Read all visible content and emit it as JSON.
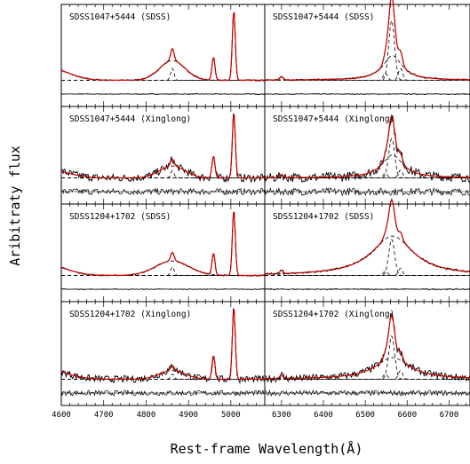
{
  "colors": {
    "data_line": "#000000",
    "model_line": "#cc0000",
    "component_line": "#000000"
  },
  "chart_data": {
    "type": "line",
    "xlabel": "Rest-frame Wavelength(Å)",
    "ylabel": "Aribitraty flux",
    "left_x_ticks": [
      "4600",
      "4700",
      "4800",
      "4900",
      "5000"
    ],
    "right_x_ticks": [
      "6300",
      "6400",
      "6500",
      "6600",
      "6700"
    ],
    "left_xlim": [
      4600,
      5080
    ],
    "right_xlim": [
      6260,
      6750
    ],
    "panels": [
      {
        "label": "SDSS1047+5444 (SDSS)",
        "row": 0,
        "col": 0,
        "region": "hbeta_oiii",
        "fe_strength": 0.35,
        "hb_strength": 0.28,
        "o3_strength": 1.0,
        "noise": 0.01,
        "broad_width": 30
      },
      {
        "label": "SDSS1047+5444 (SDSS)",
        "row": 0,
        "col": 1,
        "region": "halpha",
        "narrow_strength": 0.85,
        "broad_strength": 0.35,
        "broad_width": 28,
        "noise": 0.01
      },
      {
        "label": "SDSS1047+5444 (Xinglong)",
        "row": 1,
        "col": 0,
        "region": "hbeta_oiii",
        "fe_strength": 0.25,
        "hb_strength": 0.18,
        "o3_strength": 1.0,
        "noise": 0.06,
        "broad_width": 30
      },
      {
        "label": "SDSS1047+5444 (Xinglong)",
        "row": 1,
        "col": 1,
        "region": "halpha",
        "narrow_strength": 0.6,
        "broad_strength": 0.35,
        "broad_width": 30,
        "noise": 0.07
      },
      {
        "label": "SDSS1204+1702 (SDSS)",
        "row": 2,
        "col": 0,
        "region": "hbeta_oiii",
        "fe_strength": 0.3,
        "hb_strength": 0.22,
        "o3_strength": 1.0,
        "noise": 0.01,
        "broad_width": 40
      },
      {
        "label": "SDSS1204+1702 (SDSS)",
        "row": 2,
        "col": 1,
        "region": "halpha",
        "narrow_strength": 0.55,
        "broad_strength": 0.6,
        "broad_width": 60,
        "noise": 0.015
      },
      {
        "label": "SDSS1204+1702 (Xinglong)",
        "row": 3,
        "col": 0,
        "region": "hbeta_oiii",
        "fe_strength": 0.25,
        "hb_strength": 0.12,
        "o3_strength": 1.0,
        "noise": 0.05,
        "broad_width": 30
      },
      {
        "label": "SDSS1204+1702 (Xinglong)",
        "row": 3,
        "col": 1,
        "region": "halpha",
        "narrow_strength": 0.6,
        "broad_strength": 0.3,
        "broad_width": 50,
        "noise": 0.05
      }
    ]
  }
}
